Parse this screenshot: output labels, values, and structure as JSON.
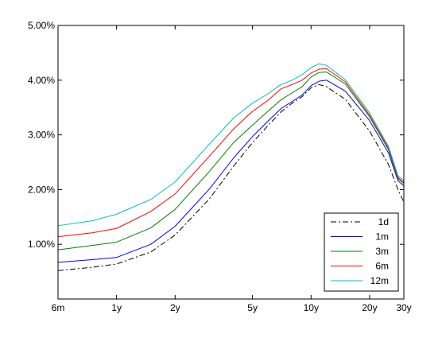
{
  "chart_data": {
    "type": "line",
    "title": "",
    "xlabel": "",
    "ylabel": "",
    "x_scale": "log",
    "x_tick_labels": [
      "6m",
      "1y",
      "2y",
      "5y",
      "10y",
      "20y",
      "30y"
    ],
    "x_tick_values_years": [
      0.5,
      1,
      2,
      5,
      10,
      20,
      30
    ],
    "xlim": [
      0.5,
      30
    ],
    "ylim": [
      0.0,
      5.0
    ],
    "y_unit": "%",
    "y_ticks": [
      1.0,
      2.0,
      3.0,
      4.0,
      5.0
    ],
    "y_tick_labels": [
      "1.00%",
      "2.00%",
      "3.00%",
      "4.00%",
      "5.00%"
    ],
    "grid": false,
    "legend_position": "bottom-right",
    "x": [
      0.5,
      0.75,
      1.0,
      1.5,
      2.0,
      3.0,
      4.0,
      5.0,
      6.0,
      7.0,
      8.0,
      9.0,
      10.0,
      11.0,
      12.0,
      15.0,
      20.0,
      25.0,
      28.0,
      30.0
    ],
    "series": [
      {
        "name": "1d",
        "color": "#000000",
        "dash": "dashdot",
        "values": [
          0.52,
          0.58,
          0.64,
          0.86,
          1.17,
          1.83,
          2.43,
          2.86,
          3.17,
          3.42,
          3.58,
          3.7,
          3.86,
          3.92,
          3.88,
          3.65,
          3.07,
          2.46,
          2.0,
          1.77
        ]
      },
      {
        "name": "1m",
        "color": "#0000ff",
        "dash": "solid",
        "values": [
          0.67,
          0.72,
          0.76,
          1.0,
          1.33,
          2.01,
          2.58,
          2.97,
          3.25,
          3.48,
          3.61,
          3.73,
          3.9,
          3.98,
          4.0,
          3.8,
          3.26,
          2.67,
          2.16,
          2.07
        ]
      },
      {
        "name": "3m",
        "color": "#008000",
        "dash": "solid",
        "values": [
          0.9,
          0.98,
          1.04,
          1.3,
          1.64,
          2.33,
          2.86,
          3.18,
          3.43,
          3.64,
          3.77,
          3.88,
          4.06,
          4.14,
          4.15,
          3.93,
          3.33,
          2.73,
          2.2,
          2.11
        ]
      },
      {
        "name": "6m",
        "color": "#ff0000",
        "dash": "solid",
        "values": [
          1.14,
          1.21,
          1.29,
          1.6,
          1.92,
          2.61,
          3.11,
          3.43,
          3.63,
          3.84,
          3.92,
          4.0,
          4.13,
          4.2,
          4.21,
          3.97,
          3.36,
          2.76,
          2.22,
          2.13
        ]
      },
      {
        "name": "12m",
        "color": "#00bfbf",
        "dash": "solid",
        "values": [
          1.34,
          1.43,
          1.55,
          1.82,
          2.14,
          2.83,
          3.31,
          3.58,
          3.75,
          3.92,
          4.0,
          4.1,
          4.23,
          4.3,
          4.27,
          4.01,
          3.4,
          2.79,
          2.25,
          2.17
        ]
      }
    ]
  }
}
